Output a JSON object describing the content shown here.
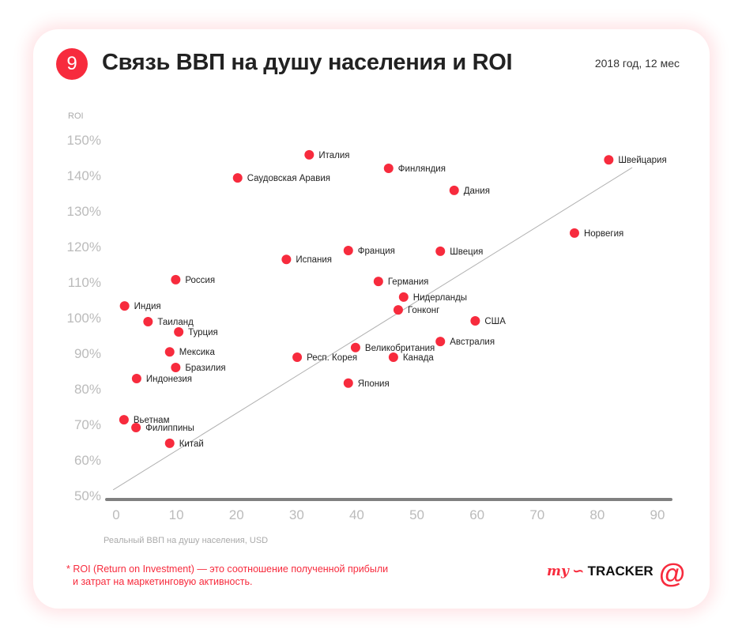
{
  "header": {
    "number": "9",
    "title": "Связь ВВП на душу населения и ROI",
    "period": "2018 год, 12 мес"
  },
  "footnote": {
    "line1": "* ROI (Return on Investment) — это соотношение полученной прибыли",
    "line2": "и затрат на маркетинговую активность."
  },
  "brand": {
    "logo_my": "my",
    "logo_tracker": "TRACKER",
    "logo_at": "@"
  },
  "colors": {
    "accent": "#f72b3d",
    "axis": "#808080",
    "tick": "#bbbbbb",
    "trend": "#b0b0b0"
  },
  "chart_data": {
    "type": "scatter",
    "ylabel": "ROI",
    "xlabel": "Реальный ВВП на душу населения, USD",
    "xlim": [
      0,
      90
    ],
    "ylim": [
      50,
      150
    ],
    "xticks": [
      "0",
      "10",
      "20",
      "30",
      "40",
      "50",
      "60",
      "70",
      "80",
      "90"
    ],
    "yticks": [
      "50%",
      "60%",
      "70%",
      "80%",
      "90%",
      "100%",
      "110%",
      "120%",
      "130%",
      "140%",
      "150%"
    ],
    "grid": false,
    "trendline": {
      "x": [
        -0.5,
        85.8
      ],
      "y": [
        51.6,
        142.2
      ]
    },
    "points": [
      {
        "label": "Италия",
        "x": 32.1,
        "y": 145.8
      },
      {
        "label": "Финляндия",
        "x": 45.3,
        "y": 142.0
      },
      {
        "label": "Швейцария",
        "x": 81.9,
        "y": 144.4
      },
      {
        "label": "Саудовская Аравия",
        "x": 20.2,
        "y": 139.3
      },
      {
        "label": "Дания",
        "x": 56.2,
        "y": 135.8
      },
      {
        "label": "Норвегия",
        "x": 76.2,
        "y": 123.8
      },
      {
        "label": "Испания",
        "x": 28.3,
        "y": 116.4
      },
      {
        "label": "Франция",
        "x": 38.6,
        "y": 118.9
      },
      {
        "label": "Швеция",
        "x": 53.9,
        "y": 118.7
      },
      {
        "label": "Россия",
        "x": 9.9,
        "y": 110.7
      },
      {
        "label": "Германия",
        "x": 43.6,
        "y": 110.2
      },
      {
        "label": "Нидерланды",
        "x": 47.8,
        "y": 105.8
      },
      {
        "label": "Индия",
        "x": 1.4,
        "y": 103.3
      },
      {
        "label": "Гонконг",
        "x": 46.9,
        "y": 102.2
      },
      {
        "label": "Таиланд",
        "x": 5.3,
        "y": 98.9
      },
      {
        "label": "США",
        "x": 59.7,
        "y": 99.1
      },
      {
        "label": "Турция",
        "x": 10.4,
        "y": 96.0
      },
      {
        "label": "Австралия",
        "x": 53.9,
        "y": 93.3
      },
      {
        "label": "Мексика",
        "x": 8.9,
        "y": 90.4
      },
      {
        "label": "Великобритания",
        "x": 39.8,
        "y": 91.6
      },
      {
        "label": "Респ. Корея",
        "x": 30.1,
        "y": 88.9
      },
      {
        "label": "Канада",
        "x": 46.1,
        "y": 88.9
      },
      {
        "label": "Бразилия",
        "x": 9.9,
        "y": 86.0
      },
      {
        "label": "Индонезия",
        "x": 3.4,
        "y": 82.9
      },
      {
        "label": "Япония",
        "x": 38.6,
        "y": 81.6
      },
      {
        "label": "Вьетнам",
        "x": 1.3,
        "y": 71.3
      },
      {
        "label": "Филиппины",
        "x": 3.3,
        "y": 69.1
      },
      {
        "label": "Китай",
        "x": 8.9,
        "y": 64.7
      }
    ]
  }
}
